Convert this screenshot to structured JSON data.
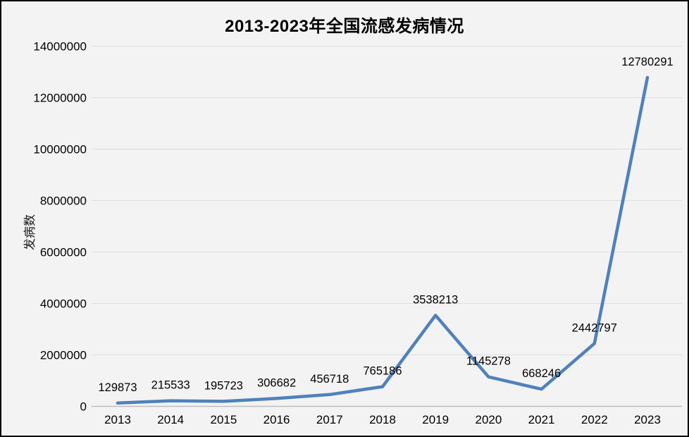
{
  "chart_data": {
    "type": "line",
    "title": "2013-2023年全国流感发病情况",
    "xlabel": "",
    "ylabel": "发病数",
    "categories": [
      "2013",
      "2014",
      "2015",
      "2016",
      "2017",
      "2018",
      "2019",
      "2020",
      "2021",
      "2022",
      "2023"
    ],
    "series": [
      {
        "name": "发病数",
        "values": [
          129873,
          215533,
          195723,
          306682,
          456718,
          765186,
          3538213,
          1145278,
          668246,
          2442797,
          12780291
        ],
        "data_labels": [
          "129873",
          "215533",
          "195723",
          "306682",
          "456718",
          "765186",
          "3538213",
          "1145278",
          "668246",
          "2442797",
          "12780291"
        ]
      }
    ],
    "ylim": [
      0,
      14000000
    ],
    "yticks": [
      0,
      2000000,
      4000000,
      6000000,
      8000000,
      10000000,
      12000000,
      14000000
    ],
    "ytick_labels": [
      "0",
      "2000000",
      "4000000",
      "6000000",
      "8000000",
      "10000000",
      "12000000",
      "14000000"
    ],
    "grid": true,
    "legend_position": "none",
    "colors": {
      "line": "#4f81bd",
      "background": "#f3f3f3",
      "gridline": "#dddddd",
      "axis_line": "#bdbdbd",
      "text": "#000000",
      "border": "#000000"
    }
  }
}
